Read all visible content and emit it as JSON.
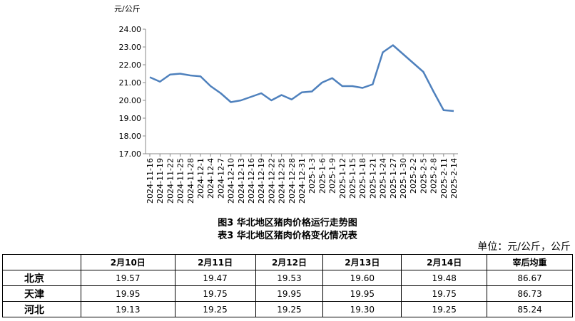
{
  "chart_data": {
    "type": "line",
    "title": "图3 华北地区猪肉价格运行走势图",
    "ylabel": "元/公斤",
    "color": "#4f81bd",
    "categories": [
      "2024-11-16",
      "2024-11-19",
      "2024-11-22",
      "2024-11-25",
      "2024-11-28",
      "2024-12-1",
      "2024-12-4",
      "2024-12-7",
      "2024-12-10",
      "2024-12-13",
      "2024-12-16",
      "2024-12-19",
      "2024-12-22",
      "2024-12-25",
      "2024-12-28",
      "2024-12-31",
      "2025-1-3",
      "2025-1-6",
      "2025-1-9",
      "2025-1-12",
      "2025-1-15",
      "2025-1-18",
      "2025-1-21",
      "2025-1-24",
      "2025-1-27",
      "2025-1-30",
      "2025-2-2",
      "2025-2-5",
      "2025-2-8",
      "2025-2-11",
      "2025-2-14"
    ],
    "values": [
      21.3,
      21.05,
      21.45,
      21.5,
      21.4,
      21.35,
      20.8,
      20.4,
      19.9,
      20.0,
      20.2,
      20.4,
      20.0,
      20.3,
      20.05,
      20.45,
      20.5,
      21.0,
      21.25,
      20.8,
      20.8,
      20.7,
      20.9,
      22.7,
      23.1,
      22.6,
      22.1,
      21.6,
      20.5,
      19.45,
      19.4
    ],
    "ylim": [
      17,
      24
    ],
    "yticks": [
      {
        "value": 17,
        "label": "17.00"
      },
      {
        "value": 18,
        "label": "18.00"
      },
      {
        "value": 19,
        "label": "19.00"
      },
      {
        "value": 20,
        "label": "20.00"
      },
      {
        "value": 21,
        "label": "21.00"
      },
      {
        "value": 22,
        "label": "22.00"
      },
      {
        "value": 23,
        "label": "23.00"
      },
      {
        "value": 24,
        "label": "24.00"
      }
    ],
    "grid": false
  },
  "table": {
    "title": "表3 华北地区猪肉价格变化情况表",
    "unit": "单位：元/公斤，公斤",
    "header": [
      "2月10日",
      "2月11日",
      "2月12日",
      "2月13日",
      "2月14日",
      "宰后均重"
    ],
    "rows": [
      [
        "北京",
        "19.57",
        "19.47",
        "19.53",
        "19.60",
        "19.48",
        "86.67"
      ],
      [
        "天津",
        "19.95",
        "19.75",
        "19.95",
        "19.95",
        "19.75",
        "86.73"
      ],
      [
        "河北",
        "19.13",
        "19.25",
        "19.25",
        "19.30",
        "19.25",
        "85.24"
      ]
    ]
  }
}
